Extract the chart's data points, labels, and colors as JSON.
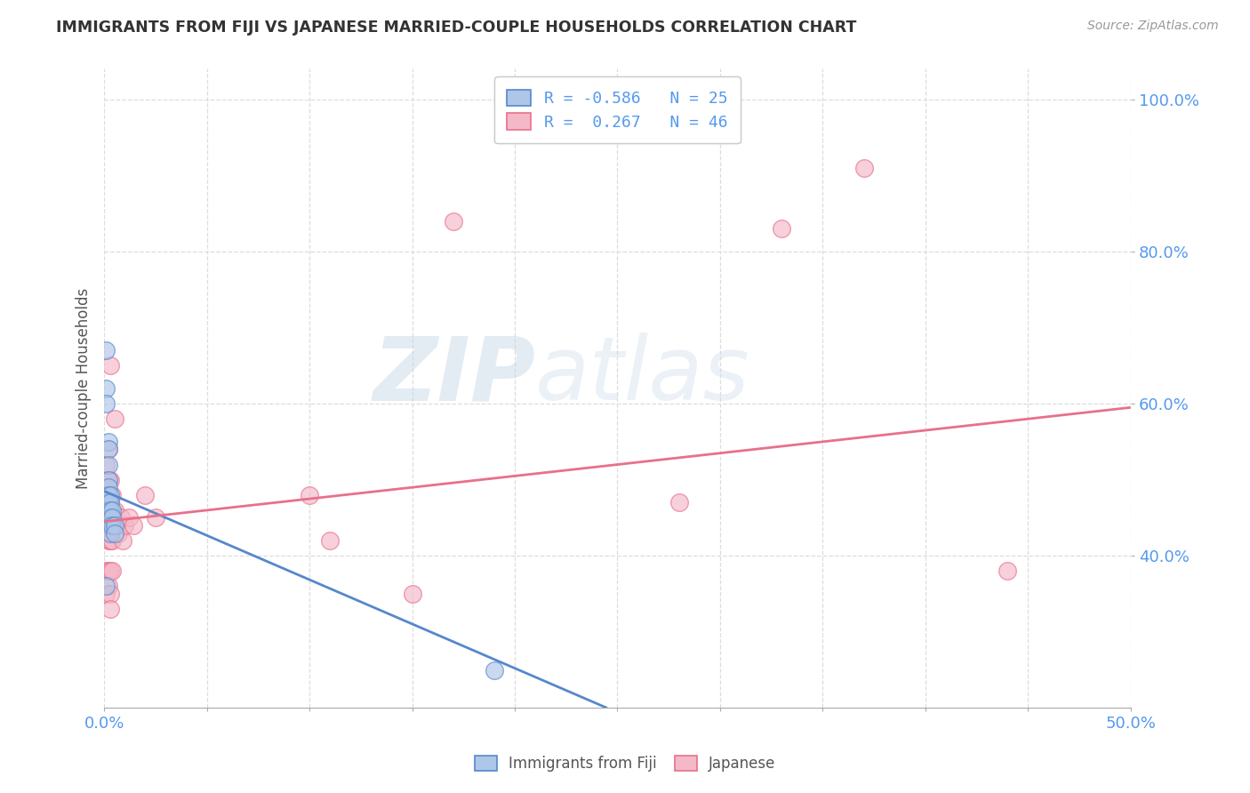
{
  "title": "IMMIGRANTS FROM FIJI VS JAPANESE MARRIED-COUPLE HOUSEHOLDS CORRELATION CHART",
  "source": "Source: ZipAtlas.com",
  "ylabel": "Married-couple Households",
  "xlim": [
    0.0,
    0.5
  ],
  "ylim": [
    0.2,
    1.04
  ],
  "xticks": [
    0.0,
    0.05,
    0.1,
    0.15,
    0.2,
    0.25,
    0.3,
    0.35,
    0.4,
    0.45,
    0.5
  ],
  "xtick_labels_show": [
    "0.0%",
    "",
    "",
    "",
    "",
    "",
    "",
    "",
    "",
    "",
    "50.0%"
  ],
  "yticks": [
    0.4,
    0.6,
    0.8,
    1.0
  ],
  "ytick_labels": [
    "40.0%",
    "60.0%",
    "80.0%",
    "100.0%"
  ],
  "legend_bottom": [
    "Immigrants from Fiji",
    "Japanese"
  ],
  "fiji_color": "#aec6e8",
  "japan_color": "#f4b8c8",
  "fiji_line_color": "#5588cc",
  "japan_line_color": "#e8708a",
  "watermark_zip": "ZIP",
  "watermark_atlas": "atlas",
  "background_color": "#ffffff",
  "grid_color": "#dddddd",
  "fiji_R": -0.586,
  "fiji_N": 25,
  "japan_R": 0.267,
  "japan_N": 46,
  "fiji_points": [
    [
      0.001,
      0.67
    ],
    [
      0.001,
      0.62
    ],
    [
      0.001,
      0.6
    ],
    [
      0.002,
      0.55
    ],
    [
      0.002,
      0.54
    ],
    [
      0.002,
      0.52
    ],
    [
      0.002,
      0.5
    ],
    [
      0.002,
      0.49
    ],
    [
      0.002,
      0.48
    ],
    [
      0.002,
      0.47
    ],
    [
      0.002,
      0.46
    ],
    [
      0.002,
      0.45
    ],
    [
      0.003,
      0.48
    ],
    [
      0.003,
      0.47
    ],
    [
      0.003,
      0.46
    ],
    [
      0.003,
      0.45
    ],
    [
      0.003,
      0.44
    ],
    [
      0.003,
      0.43
    ],
    [
      0.004,
      0.46
    ],
    [
      0.004,
      0.45
    ],
    [
      0.004,
      0.44
    ],
    [
      0.005,
      0.44
    ],
    [
      0.005,
      0.43
    ],
    [
      0.001,
      0.36
    ],
    [
      0.19,
      0.25
    ]
  ],
  "japan_points": [
    [
      0.001,
      0.52
    ],
    [
      0.001,
      0.5
    ],
    [
      0.001,
      0.46
    ],
    [
      0.001,
      0.44
    ],
    [
      0.001,
      0.43
    ],
    [
      0.001,
      0.38
    ],
    [
      0.001,
      0.35
    ],
    [
      0.002,
      0.54
    ],
    [
      0.002,
      0.5
    ],
    [
      0.002,
      0.48
    ],
    [
      0.002,
      0.46
    ],
    [
      0.002,
      0.44
    ],
    [
      0.002,
      0.42
    ],
    [
      0.002,
      0.38
    ],
    [
      0.002,
      0.36
    ],
    [
      0.003,
      0.65
    ],
    [
      0.003,
      0.5
    ],
    [
      0.003,
      0.47
    ],
    [
      0.003,
      0.44
    ],
    [
      0.003,
      0.42
    ],
    [
      0.003,
      0.38
    ],
    [
      0.003,
      0.35
    ],
    [
      0.003,
      0.33
    ],
    [
      0.004,
      0.48
    ],
    [
      0.004,
      0.44
    ],
    [
      0.004,
      0.42
    ],
    [
      0.004,
      0.38
    ],
    [
      0.005,
      0.58
    ],
    [
      0.005,
      0.46
    ],
    [
      0.006,
      0.44
    ],
    [
      0.007,
      0.43
    ],
    [
      0.008,
      0.45
    ],
    [
      0.009,
      0.42
    ],
    [
      0.01,
      0.44
    ],
    [
      0.012,
      0.45
    ],
    [
      0.014,
      0.44
    ],
    [
      0.02,
      0.48
    ],
    [
      0.025,
      0.45
    ],
    [
      0.1,
      0.48
    ],
    [
      0.11,
      0.42
    ],
    [
      0.15,
      0.35
    ],
    [
      0.17,
      0.84
    ],
    [
      0.28,
      0.47
    ],
    [
      0.33,
      0.83
    ],
    [
      0.37,
      0.91
    ],
    [
      0.44,
      0.38
    ]
  ],
  "fiji_line": {
    "x0": 0.0,
    "y0": 0.485,
    "x1": 0.245,
    "y1": 0.2
  },
  "japan_line": {
    "x0": 0.0,
    "y0": 0.445,
    "x1": 0.5,
    "y1": 0.595
  }
}
